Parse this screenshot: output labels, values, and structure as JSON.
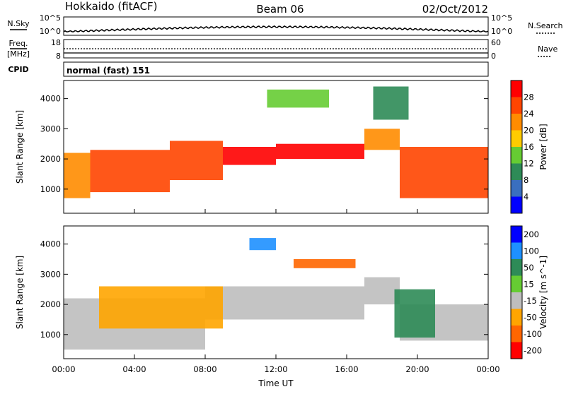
{
  "header": {
    "station": "Hokkaido (fitACF)",
    "beam": "Beam 06",
    "date": "02/Oct/2012"
  },
  "nsky_panel": {
    "left_label": "N.Sky",
    "right_label": "N.Search",
    "left_ticks": [
      "10^5",
      "10^0"
    ],
    "right_ticks": [
      "10^5",
      "10^0"
    ]
  },
  "freq_panel": {
    "left_label_1": "Freq.",
    "left_label_2": "[MHz]",
    "right_label": "Nave",
    "left_ticks": [
      "18",
      "8"
    ],
    "right_ticks": [
      "60",
      "0"
    ]
  },
  "cpid_panel": {
    "label": "CPID",
    "text": "normal (fast) 151"
  },
  "colors": {
    "power_scale": [
      "#0000ff",
      "#3a6fbf",
      "#2e8b57",
      "#66cc33",
      "#ffcc00",
      "#ff8c00",
      "#ff4500",
      "#ff0000"
    ],
    "velocity_scale": [
      "#0000ff",
      "#1e90ff",
      "#2e8b57",
      "#66cc33",
      "#bebebe",
      "#ffa500",
      "#ff6600",
      "#ff0000"
    ],
    "ground_scatter": "#bebebe"
  },
  "chart_data": [
    {
      "type": "heatmap",
      "title": "Power",
      "xlabel": "",
      "ylabel": "Slant Range [km]",
      "x_ticks": [
        "00:00",
        "04:00",
        "08:00",
        "12:00",
        "16:00",
        "20:00",
        "00:00"
      ],
      "y_ticks": [
        "1000",
        "2000",
        "3000",
        "4000"
      ],
      "ylim": [
        200,
        4600
      ],
      "colorbar": {
        "label": "Power [dB]",
        "ticks": [
          "4",
          "8",
          "12",
          "16",
          "20",
          "24",
          "28"
        ],
        "range": [
          0,
          30
        ]
      },
      "bands": [
        {
          "t": [
            0.0,
            1.5
          ],
          "range_km": [
            700,
            2200
          ],
          "value_db": 22
        },
        {
          "t": [
            1.5,
            6.0
          ],
          "range_km": [
            900,
            2300
          ],
          "value_db": 26
        },
        {
          "t": [
            6.0,
            9.0
          ],
          "range_km": [
            1300,
            2600
          ],
          "value_db": 24
        },
        {
          "t": [
            9.0,
            12.0
          ],
          "range_km": [
            1800,
            2400
          ],
          "value_db": 28
        },
        {
          "t": [
            12.0,
            17.0
          ],
          "range_km": [
            2000,
            2500
          ],
          "value_db": 28
        },
        {
          "t": [
            17.0,
            19.0
          ],
          "range_km": [
            2300,
            3000
          ],
          "value_db": 22
        },
        {
          "t": [
            19.0,
            24.0
          ],
          "range_km": [
            700,
            2400
          ],
          "value_db": 26
        },
        {
          "t": [
            11.5,
            15.0
          ],
          "range_km": [
            3700,
            4300
          ],
          "value_db": 14
        },
        {
          "t": [
            17.5,
            19.5
          ],
          "range_km": [
            3300,
            4400
          ],
          "value_db": 8
        }
      ]
    },
    {
      "type": "heatmap",
      "title": "Velocity",
      "xlabel": "Time UT",
      "ylabel": "Slant Range [km]",
      "x_ticks": [
        "00:00",
        "04:00",
        "08:00",
        "12:00",
        "16:00",
        "20:00",
        "00:00"
      ],
      "y_ticks": [
        "1000",
        "2000",
        "3000",
        "4000"
      ],
      "ylim": [
        200,
        4600
      ],
      "colorbar": {
        "label": "Velocity [m s^-1]",
        "ticks": [
          "200",
          "100",
          "50",
          "15",
          "-15",
          "-50",
          "-100",
          "-200"
        ],
        "range": [
          -250,
          250
        ]
      },
      "bands": [
        {
          "t": [
            0.0,
            8.0
          ],
          "range_km": [
            500,
            2200
          ],
          "value_ms": 0
        },
        {
          "t": [
            8.0,
            17.0
          ],
          "range_km": [
            1500,
            2600
          ],
          "value_ms": 0
        },
        {
          "t": [
            17.0,
            19.0
          ],
          "range_km": [
            2000,
            2900
          ],
          "value_ms": 0
        },
        {
          "t": [
            19.0,
            24.0
          ],
          "range_km": [
            800,
            2000
          ],
          "value_ms": 0
        },
        {
          "t": [
            2.0,
            9.0
          ],
          "range_km": [
            1200,
            2600
          ],
          "value_ms": -60
        },
        {
          "t": [
            13.0,
            16.5
          ],
          "range_km": [
            3200,
            3500
          ],
          "value_ms": -80
        },
        {
          "t": [
            18.7,
            21.0
          ],
          "range_km": [
            900,
            2500
          ],
          "value_ms": 40
        },
        {
          "t": [
            10.5,
            12.0
          ],
          "range_km": [
            3800,
            4200
          ],
          "value_ms": 150
        }
      ]
    }
  ]
}
